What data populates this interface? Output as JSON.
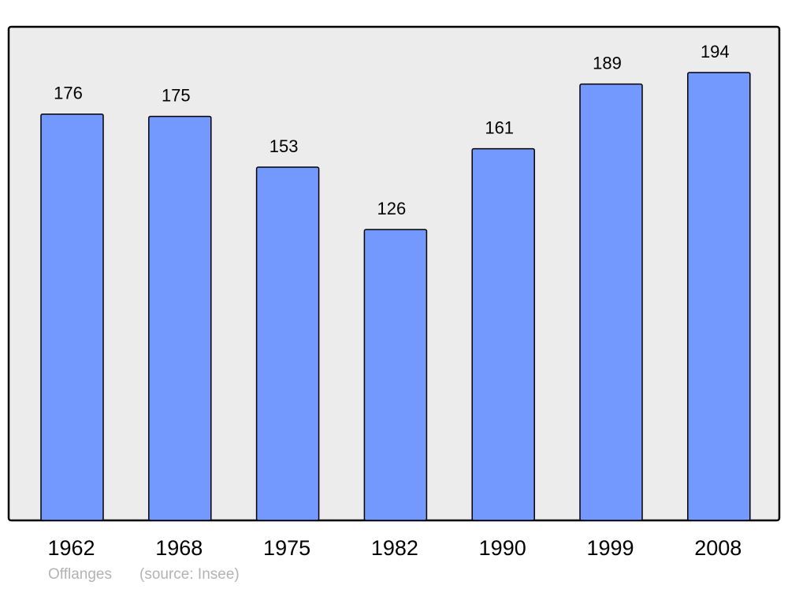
{
  "chart_data": {
    "type": "bar",
    "categories": [
      "1962",
      "1968",
      "1975",
      "1982",
      "1990",
      "1999",
      "2008"
    ],
    "values": [
      176,
      175,
      153,
      126,
      161,
      189,
      194
    ],
    "data_labels": true,
    "title": "",
    "xlabel": "",
    "ylabel": "",
    "grid": false,
    "colors": {
      "bar": "#7399ff",
      "plot_background": "#ececec",
      "border": "#000000"
    }
  },
  "footer": {
    "place": "Offlanges",
    "source": "(source: Insee)"
  }
}
